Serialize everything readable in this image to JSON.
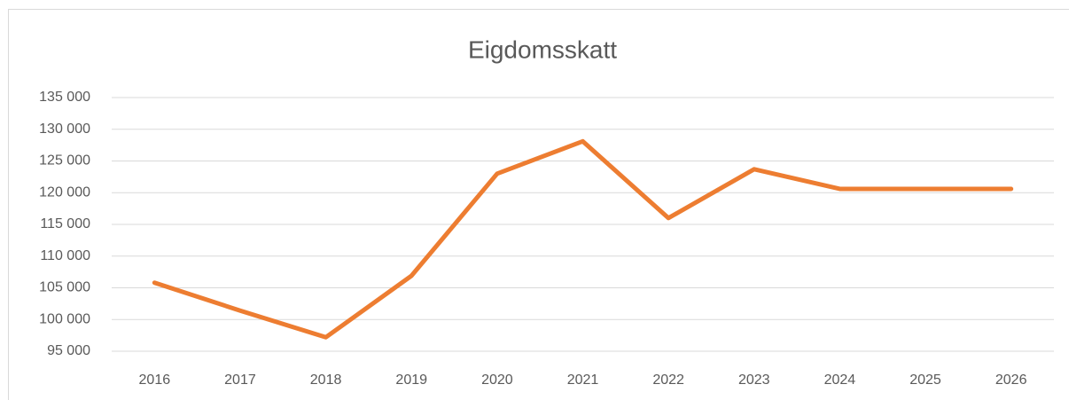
{
  "chart_data": {
    "type": "line",
    "title": "Eigdomsskatt",
    "categories": [
      "2016",
      "2017",
      "2018",
      "2019",
      "2020",
      "2021",
      "2022",
      "2023",
      "2024",
      "2025",
      "2026"
    ],
    "series": [
      {
        "name": "Eigdomsskatt",
        "color": "#ed7d31",
        "values": [
          105800,
          101400,
          97200,
          106900,
          123000,
          128100,
          116000,
          123700,
          120600,
          120600,
          120600
        ]
      }
    ],
    "ylim": [
      95000,
      135000
    ],
    "yticks": [
      {
        "value": 95000,
        "label": "95 000"
      },
      {
        "value": 100000,
        "label": "100 000"
      },
      {
        "value": 105000,
        "label": "105 000"
      },
      {
        "value": 110000,
        "label": "110 000"
      },
      {
        "value": 115000,
        "label": "115 000"
      },
      {
        "value": 120000,
        "label": "120 000"
      },
      {
        "value": 125000,
        "label": "125 000"
      },
      {
        "value": 130000,
        "label": "130 000"
      },
      {
        "value": 135000,
        "label": "135 000"
      }
    ],
    "grid": true
  }
}
